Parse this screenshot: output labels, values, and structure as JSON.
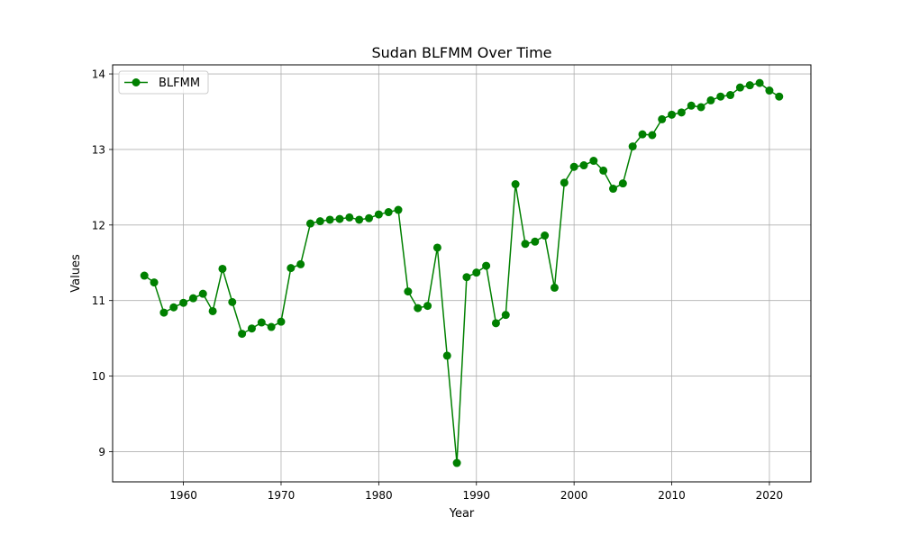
{
  "chart_data": {
    "type": "line",
    "title": "Sudan BLFMM Over Time",
    "xlabel": "Year",
    "ylabel": "Values",
    "xlim": [
      1952.75,
      2024.25
    ],
    "ylim": [
      8.6,
      14.12
    ],
    "xticks": [
      1960,
      1970,
      1980,
      1990,
      2000,
      2010,
      2020
    ],
    "xtick_labels": [
      "1960",
      "1970",
      "1980",
      "1990",
      "2000",
      "2010",
      "2020"
    ],
    "yticks": [
      9,
      10,
      11,
      12,
      13,
      14
    ],
    "ytick_labels": [
      "9",
      "10",
      "11",
      "12",
      "13",
      "14"
    ],
    "grid": true,
    "legend_position": "top-left",
    "series": [
      {
        "name": "BLFMM",
        "color": "#008000",
        "marker": "circle",
        "x": [
          1956,
          1957,
          1958,
          1959,
          1960,
          1961,
          1962,
          1963,
          1964,
          1965,
          1966,
          1967,
          1968,
          1969,
          1970,
          1971,
          1972,
          1973,
          1974,
          1975,
          1976,
          1977,
          1978,
          1979,
          1980,
          1981,
          1982,
          1983,
          1984,
          1985,
          1986,
          1987,
          1988,
          1989,
          1990,
          1991,
          1992,
          1993,
          1994,
          1995,
          1996,
          1997,
          1998,
          1999,
          2000,
          2001,
          2002,
          2003,
          2004,
          2005,
          2006,
          2007,
          2008,
          2009,
          2010,
          2011,
          2012,
          2013,
          2014,
          2015,
          2016,
          2017,
          2018,
          2019,
          2020,
          2021
        ],
        "y": [
          11.33,
          11.24,
          10.84,
          10.91,
          10.97,
          11.03,
          11.09,
          10.86,
          11.42,
          10.98,
          10.56,
          10.63,
          10.71,
          10.65,
          10.72,
          11.43,
          11.48,
          12.02,
          12.05,
          12.07,
          12.08,
          12.1,
          12.07,
          12.09,
          12.14,
          12.17,
          12.2,
          11.12,
          10.9,
          10.93,
          11.7,
          10.27,
          8.85,
          11.31,
          11.37,
          11.46,
          10.7,
          10.81,
          12.54,
          11.75,
          11.78,
          11.86,
          11.17,
          12.56,
          12.77,
          12.79,
          12.85,
          12.72,
          12.48,
          12.55,
          13.04,
          13.2,
          13.19,
          13.4,
          13.46,
          13.49,
          13.58,
          13.56,
          13.65,
          13.7,
          13.72,
          13.82,
          13.85,
          13.88,
          13.78,
          13.7
        ]
      }
    ]
  }
}
